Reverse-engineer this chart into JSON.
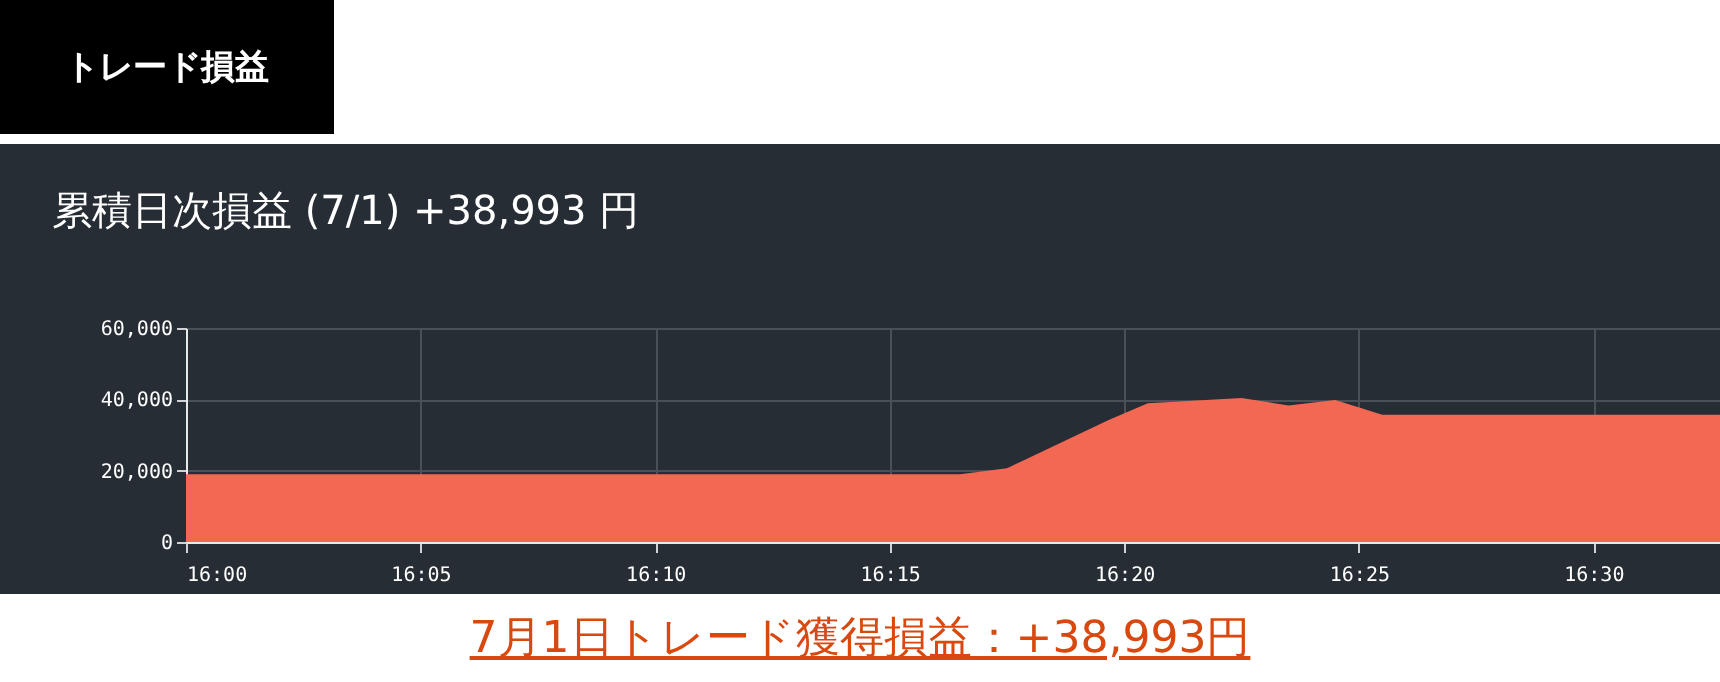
{
  "chart_data": {
    "type": "area",
    "title": "トレード損益",
    "subtitle": "累積日次損益 (7/1) +38,993 円",
    "annotations": [
      "7月1日トレード獲得損益：+38,993円"
    ],
    "x": [
      16,
      16.25,
      16.275,
      16.2917,
      16.3278,
      16.3417,
      16.375,
      16.3917,
      16.4083,
      16.425,
      16.545
    ],
    "series": [
      {
        "color": "#f26852",
        "values": [
          19000,
          19000,
          19000,
          20700,
          34200,
          38900,
          40400,
          38300,
          39800,
          35700,
          35700
        ]
      }
    ],
    "xlim": [
      16,
      16.545
    ],
    "xticks": [
      {
        "value": 16,
        "label": "16:00"
      },
      {
        "value": 16.0833,
        "label": "16:05"
      },
      {
        "value": 16.1667,
        "label": "16:10"
      },
      {
        "value": 16.25,
        "label": "16:15"
      },
      {
        "value": 16.3333,
        "label": "16:20"
      },
      {
        "value": 16.4167,
        "label": "16:25"
      },
      {
        "value": 16.5,
        "label": "16:30"
      }
    ],
    "ylim": [
      0,
      60000
    ],
    "yticks": [
      0,
      {
        "value": 20000,
        "label": "20,000"
      },
      {
        "value": 40000,
        "label": "40,000"
      },
      {
        "value": 60000,
        "label": "60,000"
      }
    ],
    "grid": true
  }
}
